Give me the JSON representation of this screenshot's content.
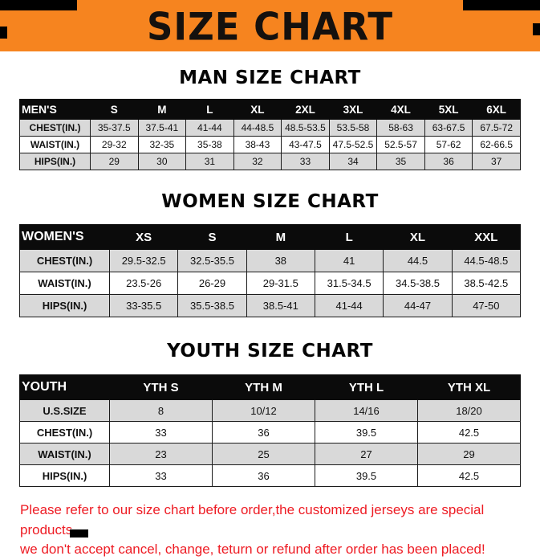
{
  "banner": {
    "title": "SIZE CHART"
  },
  "colors": {
    "banner_background": "#F6841F",
    "table_header_background": "#0b0b0b",
    "shaded_row": "#d9d9d9",
    "footer_text": "#ee1c24",
    "corner_marks": "#000000"
  },
  "tables": [
    {
      "section_title": "MAN SIZE CHART",
      "header": [
        "MEN'S",
        "S",
        "M",
        "L",
        "XL",
        "2XL",
        "3XL",
        "4XL",
        "5XL",
        "6XL"
      ],
      "rows": [
        {
          "label": "CHEST(IN.)",
          "shaded": true,
          "values": [
            "35-37.5",
            "37.5-41",
            "41-44",
            "44-48.5",
            "48.5-53.5",
            "53.5-58",
            "58-63",
            "63-67.5",
            "67.5-72"
          ]
        },
        {
          "label": "WAIST(IN.)",
          "shaded": false,
          "values": [
            "29-32",
            "32-35",
            "35-38",
            "38-43",
            "43-47.5",
            "47.5-52.5",
            "52.5-57",
            "57-62",
            "62-66.5"
          ]
        },
        {
          "label": "HIPS(IN.)",
          "shaded": true,
          "values": [
            "29",
            "30",
            "31",
            "32",
            "33",
            "34",
            "35",
            "36",
            "37"
          ]
        }
      ]
    },
    {
      "section_title": "WOMEN SIZE CHART",
      "header": [
        "WOMEN'S",
        "XS",
        "S",
        "M",
        "L",
        "XL",
        "XXL"
      ],
      "rows": [
        {
          "label": "CHEST(IN.)",
          "shaded": true,
          "values": [
            "29.5-32.5",
            "32.5-35.5",
            "38",
            "41",
            "44.5",
            "44.5-48.5"
          ]
        },
        {
          "label": "WAIST(IN.)",
          "shaded": false,
          "values": [
            "23.5-26",
            "26-29",
            "29-31.5",
            "31.5-34.5",
            "34.5-38.5",
            "38.5-42.5"
          ]
        },
        {
          "label": "HIPS(IN.)",
          "shaded": true,
          "values": [
            "33-35.5",
            "35.5-38.5",
            "38.5-41",
            "41-44",
            "44-47",
            "47-50"
          ]
        }
      ]
    },
    {
      "section_title": "YOUTH SIZE CHART",
      "header": [
        "YOUTH",
        "YTH S",
        "YTH M",
        "YTH L",
        "YTH XL"
      ],
      "rows": [
        {
          "label": "U.S.SIZE",
          "shaded": true,
          "values": [
            "8",
            "10/12",
            "14/16",
            "18/20"
          ]
        },
        {
          "label": "CHEST(IN.)",
          "shaded": false,
          "values": [
            "33",
            "36",
            "39.5",
            "42.5"
          ]
        },
        {
          "label": "WAIST(IN.)",
          "shaded": true,
          "values": [
            "23",
            "25",
            "27",
            "29"
          ]
        },
        {
          "label": "HIPS(IN.)",
          "shaded": false,
          "values": [
            "33",
            "36",
            "39.5",
            "42.5"
          ]
        }
      ]
    }
  ],
  "footer": {
    "line1": "Please refer to our size chart before order,the customized jerseys are special products,",
    "line2": "we don't accept cancel, change, teturn or refund after order has been placed!"
  }
}
